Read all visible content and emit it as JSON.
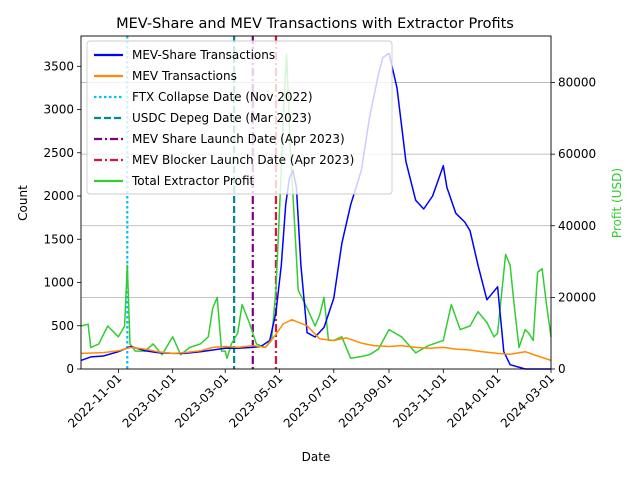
{
  "chart_data": {
    "type": "line",
    "title": "MEV-Share and MEV Transactions with Extractor Profits",
    "xlabel": "Date",
    "ylabel": "Count",
    "y2label": "Profit (USD)",
    "xlim": [
      "2022-09-20",
      "2024-03-01"
    ],
    "ylim": [
      0,
      3850
    ],
    "y2lim": [
      0,
      93000
    ],
    "x_ticks": [
      "2022-11-01",
      "2023-01-01",
      "2023-03-01",
      "2023-05-01",
      "2023-07-01",
      "2023-09-01",
      "2023-11-01",
      "2024-01-01",
      "2024-03-01"
    ],
    "y_ticks": [
      0,
      500,
      1000,
      1500,
      2000,
      2500,
      3000,
      3500
    ],
    "y2_ticks": [
      0,
      20000,
      40000,
      60000,
      80000
    ],
    "grid": "horizontal",
    "legend_position": "top-left",
    "legend": [
      {
        "label": "MEV-Share Transactions",
        "color": "#0000ff",
        "style": "solid"
      },
      {
        "label": "MEV Transactions",
        "color": "#ff8c00",
        "style": "solid"
      },
      {
        "label": "FTX Collapse Date (Nov 2022)",
        "color": "#00bfff",
        "style": "dotted"
      },
      {
        "label": "USDC Depeg Date (Mar 2023)",
        "color": "#008b8b",
        "style": "dashed"
      },
      {
        "label": "MEV Share Launch Date (Apr 2023)",
        "color": "#800080",
        "style": "dashdot"
      },
      {
        "label": "MEV Blocker Launch Date (Apr 2023)",
        "color": "#dc143c",
        "style": "dashdot"
      },
      {
        "label": "Total Extractor Profit",
        "color": "#32cd32",
        "style": "solid"
      }
    ],
    "vlines": [
      {
        "name": "FTX Collapse Date (Nov 2022)",
        "date": "2022-11-11",
        "color": "#00bfff",
        "style": "dotted"
      },
      {
        "name": "USDC Depeg Date (Mar 2023)",
        "date": "2023-03-11",
        "color": "#008b8b",
        "style": "dashed"
      },
      {
        "name": "MEV Share Launch Date (Apr 2023)",
        "date": "2023-04-01",
        "color": "#800080",
        "style": "dashdot"
      },
      {
        "name": "MEV Blocker Launch Date (Apr 2023)",
        "date": "2023-04-27",
        "color": "#dc143c",
        "style": "dashdot"
      }
    ],
    "series": [
      {
        "name": "MEV-Share Transactions",
        "axis": "left",
        "color": "#0000ff",
        "x": [
          "2022-09-20",
          "2022-10-01",
          "2022-10-15",
          "2022-11-01",
          "2022-11-15",
          "2022-12-01",
          "2022-12-15",
          "2023-01-01",
          "2023-01-15",
          "2023-02-01",
          "2023-02-15",
          "2023-03-01",
          "2023-03-15",
          "2023-04-01",
          "2023-04-10",
          "2023-04-20",
          "2023-04-27",
          "2023-05-03",
          "2023-05-08",
          "2023-05-12",
          "2023-05-16",
          "2023-05-20",
          "2023-05-25",
          "2023-06-01",
          "2023-06-10",
          "2023-06-20",
          "2023-07-01",
          "2023-07-10",
          "2023-07-20",
          "2023-08-01",
          "2023-08-10",
          "2023-08-20",
          "2023-08-25",
          "2023-09-01",
          "2023-09-10",
          "2023-09-20",
          "2023-10-01",
          "2023-10-10",
          "2023-10-20",
          "2023-11-01",
          "2023-11-05",
          "2023-11-15",
          "2023-11-25",
          "2023-12-01",
          "2023-12-10",
          "2023-12-20",
          "2024-01-01",
          "2024-01-08",
          "2024-01-15",
          "2024-02-01",
          "2024-03-01"
        ],
        "values": [
          100,
          140,
          150,
          200,
          260,
          210,
          190,
          180,
          180,
          200,
          220,
          240,
          240,
          250,
          260,
          330,
          650,
          1200,
          1900,
          2200,
          2300,
          2100,
          1200,
          420,
          370,
          480,
          820,
          1450,
          1900,
          2300,
          2900,
          3400,
          3600,
          3650,
          3250,
          2400,
          1950,
          1850,
          2000,
          2350,
          2100,
          1800,
          1700,
          1600,
          1200,
          800,
          950,
          200,
          50,
          0,
          0
        ]
      },
      {
        "name": "MEV Transactions",
        "axis": "left",
        "color": "#ff8c00",
        "x": [
          "2022-09-20",
          "2022-10-15",
          "2022-11-01",
          "2022-11-15",
          "2022-12-01",
          "2022-12-15",
          "2023-01-01",
          "2023-01-15",
          "2023-02-01",
          "2023-02-15",
          "2023-03-01",
          "2023-03-15",
          "2023-04-01",
          "2023-04-15",
          "2023-04-27",
          "2023-05-05",
          "2023-05-15",
          "2023-06-01",
          "2023-06-15",
          "2023-07-01",
          "2023-07-15",
          "2023-08-01",
          "2023-08-15",
          "2023-09-01",
          "2023-09-15",
          "2023-10-01",
          "2023-10-15",
          "2023-11-01",
          "2023-11-15",
          "2023-12-01",
          "2023-12-15",
          "2024-01-01",
          "2024-01-15",
          "2024-02-01",
          "2024-02-15",
          "2024-03-01"
        ],
        "values": [
          180,
          190,
          210,
          250,
          230,
          200,
          180,
          190,
          210,
          250,
          260,
          250,
          270,
          250,
          400,
          520,
          570,
          500,
          350,
          330,
          360,
          300,
          270,
          260,
          270,
          250,
          240,
          250,
          230,
          220,
          200,
          180,
          170,
          200,
          150,
          100
        ]
      },
      {
        "name": "Total Extractor Profit",
        "axis": "right",
        "color": "#32cd32",
        "x": [
          "2022-09-20",
          "2022-09-28",
          "2022-10-01",
          "2022-10-10",
          "2022-10-20",
          "2022-11-01",
          "2022-11-08",
          "2022-11-11",
          "2022-11-14",
          "2022-11-20",
          "2022-12-01",
          "2022-12-10",
          "2022-12-20",
          "2023-01-01",
          "2023-01-10",
          "2023-01-20",
          "2023-02-01",
          "2023-02-10",
          "2023-02-15",
          "2023-02-20",
          "2023-02-25",
          "2023-03-01",
          "2023-03-03",
          "2023-03-08",
          "2023-03-15",
          "2023-03-20",
          "2023-03-28",
          "2023-04-05",
          "2023-04-15",
          "2023-04-22",
          "2023-04-27",
          "2023-05-02",
          "2023-05-06",
          "2023-05-09",
          "2023-05-13",
          "2023-05-17",
          "2023-05-22",
          "2023-06-01",
          "2023-06-10",
          "2023-06-15",
          "2023-06-20",
          "2023-06-25",
          "2023-07-01",
          "2023-07-10",
          "2023-07-20",
          "2023-08-01",
          "2023-08-10",
          "2023-08-20",
          "2023-09-01",
          "2023-09-15",
          "2023-10-01",
          "2023-10-15",
          "2023-11-01",
          "2023-11-10",
          "2023-11-20",
          "2023-12-01",
          "2023-12-10",
          "2023-12-20",
          "2023-12-28",
          "2024-01-01",
          "2024-01-10",
          "2024-01-15",
          "2024-01-20",
          "2024-01-25",
          "2024-02-01",
          "2024-02-05",
          "2024-02-10",
          "2024-02-15",
          "2024-02-20",
          "2024-02-25",
          "2024-03-01"
        ],
        "values": [
          12000,
          12500,
          6000,
          7000,
          12000,
          9000,
          12000,
          29000,
          7000,
          5000,
          5000,
          7000,
          4000,
          9000,
          4000,
          6000,
          7000,
          9000,
          17000,
          20000,
          5000,
          5000,
          3000,
          7000,
          10000,
          18000,
          13000,
          7000,
          6000,
          8000,
          22000,
          50000,
          75000,
          88000,
          62000,
          45000,
          22000,
          17000,
          12000,
          15000,
          20000,
          8000,
          8000,
          9000,
          3000,
          3500,
          4000,
          5500,
          11000,
          9000,
          4500,
          6500,
          8000,
          18000,
          11000,
          12000,
          16000,
          13000,
          9000,
          10000,
          32000,
          29000,
          17000,
          6000,
          11000,
          10000,
          8000,
          27000,
          28000,
          18000,
          9000
        ]
      }
    ]
  }
}
